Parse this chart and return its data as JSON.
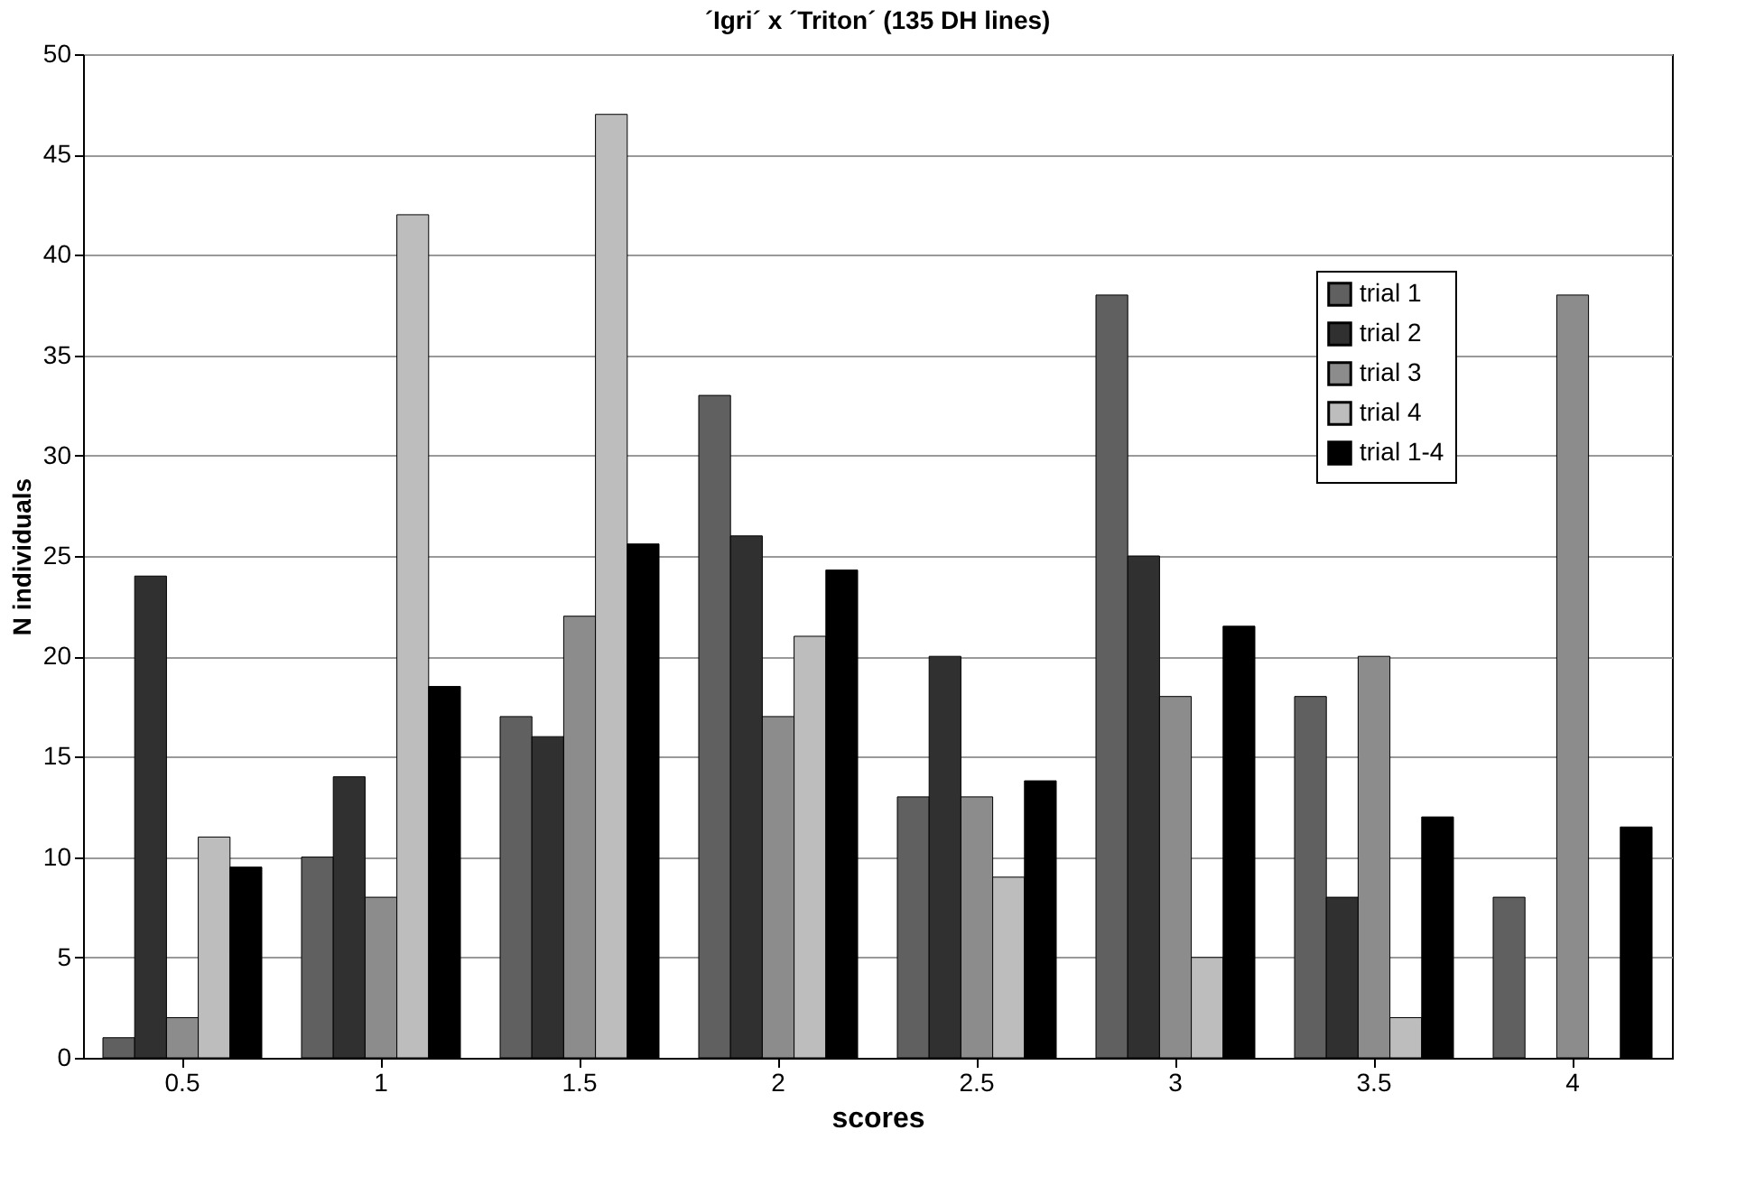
{
  "chart_data": {
    "type": "bar",
    "title": "´Igri´ x ´Triton´ (135 DH lines)",
    "xlabel": "scores",
    "ylabel": "N individuals",
    "categories": [
      "0.5",
      "1",
      "1.5",
      "2",
      "2.5",
      "3",
      "3.5",
      "4"
    ],
    "series": [
      {
        "name": "trial 1",
        "color": "#606060",
        "values": [
          1,
          10,
          17,
          33,
          13,
          38,
          18,
          8
        ]
      },
      {
        "name": "trial 2",
        "color": "#303030",
        "values": [
          24,
          14,
          16,
          26,
          20,
          25,
          8,
          null
        ]
      },
      {
        "name": "trial 3",
        "color": "#8c8c8c",
        "values": [
          2,
          8,
          22,
          17,
          13,
          18,
          20,
          38
        ]
      },
      {
        "name": "trial 4",
        "color": "#bdbdbd",
        "values": [
          11,
          42,
          47,
          21,
          9,
          5,
          2,
          null
        ]
      },
      {
        "name": "trial 1-4",
        "color": "#000000",
        "values": [
          9.5,
          18.5,
          25.6,
          24.3,
          13.8,
          21.5,
          12,
          11.5
        ]
      }
    ],
    "ylim": [
      0,
      50
    ],
    "yticks": [
      0,
      5,
      10,
      15,
      20,
      25,
      30,
      35,
      40,
      45,
      50
    ],
    "grid": "y",
    "legend": "top right"
  }
}
